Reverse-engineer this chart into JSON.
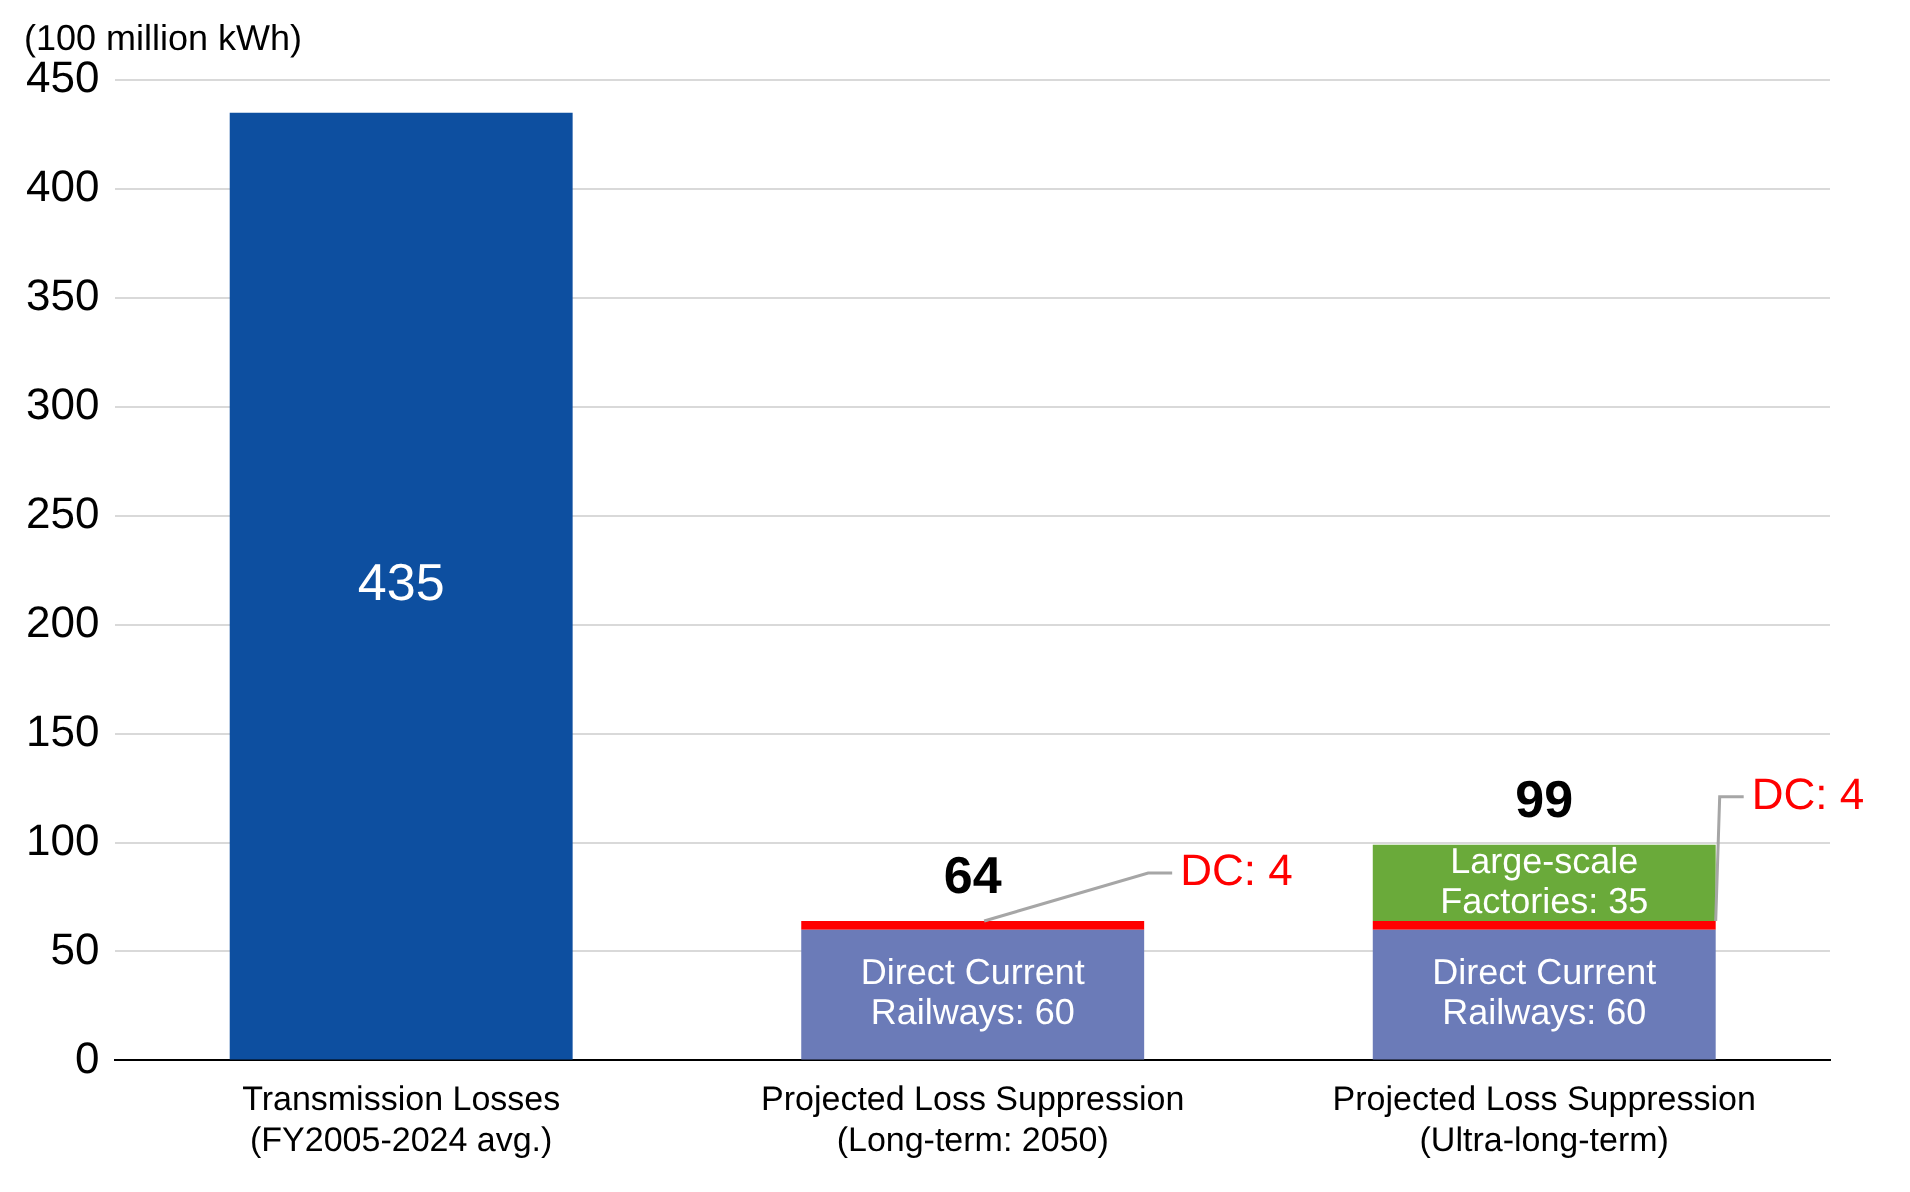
{
  "chart_data": {
    "type": "bar",
    "stacked": true,
    "ylabel": "(100 million kWh)",
    "categories": [
      "Transmission Losses (FY2005-2024 avg.)",
      "Projected Loss Suppression (Long-term: 2050)",
      "Projected Loss Suppression (Ultra-long-term)"
    ],
    "series": [
      {
        "color": "#0d4fa0",
        "values": [
          435,
          null,
          null
        ],
        "value_labels": [
          "435",
          null,
          null
        ]
      },
      {
        "color": "#6b7bb8",
        "values": [
          null,
          60,
          60
        ],
        "value_labels": [
          null,
          "Direct Current Railways: 60",
          "Direct Current Railways: 60"
        ]
      },
      {
        "color": "#ff0000",
        "values": [
          null,
          4,
          4
        ],
        "value_labels": [
          null,
          "DC: 4",
          "DC: 4"
        ]
      },
      {
        "color": "#6aaa3a",
        "values": [
          null,
          null,
          35
        ],
        "value_labels": [
          null,
          null,
          "Large-scale Factories: 35"
        ]
      }
    ],
    "totals": [
      null,
      "64",
      "99"
    ],
    "ylim": [
      0,
      450
    ],
    "yticks": [
      0,
      50,
      100,
      150,
      200,
      250,
      300,
      350,
      400,
      450
    ],
    "grid": "y",
    "legend": false
  }
}
